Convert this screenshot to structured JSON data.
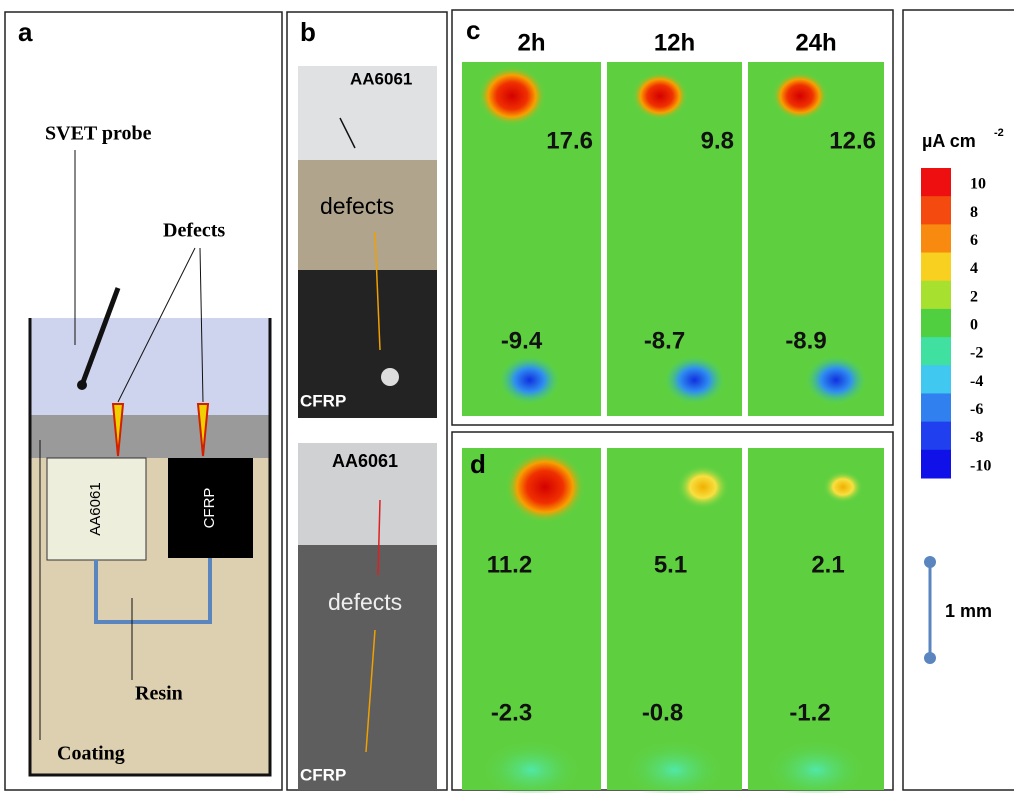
{
  "panel_a": {
    "label": "a",
    "probe": "SVET probe",
    "defects": "Defects",
    "metal": "AA6061",
    "composite": "CFRP",
    "resin": "Resin",
    "coating": "Coating"
  },
  "panel_b": {
    "label": "b",
    "top": {
      "metal": "AA6061",
      "defects": "defects",
      "composite": "CFRP"
    },
    "bottom": {
      "metal": "AA6061",
      "defects": "defects",
      "composite": "CFRP"
    }
  },
  "panel_c": {
    "label": "c",
    "times": [
      "2h",
      "12h",
      "24h"
    ],
    "anodic": [
      "17.6",
      "9.8",
      "12.6"
    ],
    "cathodic": [
      "-9.4",
      "-8.7",
      "-8.9"
    ]
  },
  "panel_d": {
    "label": "d",
    "anodic": [
      "11.2",
      "5.1",
      "2.1"
    ],
    "cathodic": [
      "-2.3",
      "-0.8",
      "-1.2"
    ]
  },
  "colorbar": {
    "unit": "µA cm",
    "unit_exponent": "-2",
    "labels": [
      "10",
      "8",
      "6",
      "4",
      "2",
      "0",
      "-2",
      "-4",
      "-6",
      "-8",
      "-10"
    ]
  },
  "scale_bar": "1 mm"
}
